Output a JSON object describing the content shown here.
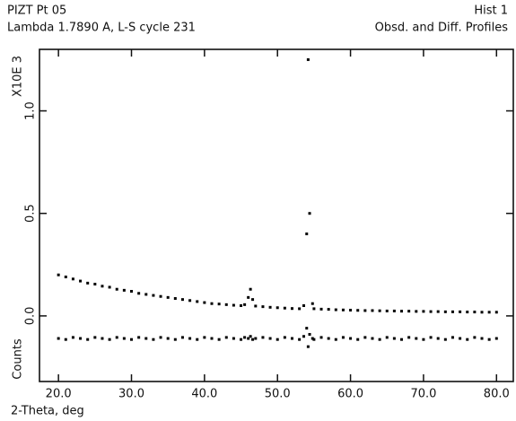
{
  "chart_data": {
    "type": "scatter",
    "title": "PIZT Pt 05",
    "subtitle": "Lambda 1.7890 A, L-S cycle  231",
    "annotations": [
      "Hist   1",
      "Obsd. and Diff. Profiles"
    ],
    "xlabel": "2-Theta, deg",
    "ylabel": "Counts",
    "y_multiplier": "X10E 3",
    "xlim": [
      17.4,
      82.3
    ],
    "ylim": [
      -0.32,
      1.3
    ],
    "xticks": [
      {
        "value": 20,
        "label": "20.0"
      },
      {
        "value": 30,
        "label": "30.0"
      },
      {
        "value": 40,
        "label": "40.0"
      },
      {
        "value": 50,
        "label": "50.0"
      },
      {
        "value": 60,
        "label": "60.0"
      },
      {
        "value": 70,
        "label": "70.0"
      },
      {
        "value": 80,
        "label": "80.0"
      }
    ],
    "yticks": [
      {
        "value": 0,
        "label": "0.0"
      },
      {
        "value": 0.5,
        "label": "0.5"
      },
      {
        "value": 1,
        "label": "1.0"
      }
    ],
    "x": [
      20,
      21,
      22,
      23,
      24,
      25,
      26,
      27,
      28,
      29,
      30,
      31,
      32,
      33,
      34,
      35,
      36,
      37,
      38,
      39,
      40,
      41,
      42,
      43,
      44,
      45,
      45.5,
      46,
      46.3,
      46.6,
      47,
      48,
      49,
      50,
      51,
      52,
      53,
      53.6,
      54,
      54.2,
      54.4,
      54.8,
      55,
      56,
      57,
      58,
      59,
      60,
      61,
      62,
      63,
      64,
      65,
      66,
      67,
      68,
      69,
      70,
      71,
      72,
      73,
      74,
      75,
      76,
      77,
      78,
      79,
      80
    ],
    "series": [
      {
        "color": "#000000",
        "values": [
          0.2,
          0.19,
          0.18,
          0.17,
          0.16,
          0.155,
          0.145,
          0.14,
          0.13,
          0.125,
          0.12,
          0.11,
          0.105,
          0.1,
          0.095,
          0.09,
          0.085,
          0.08,
          0.075,
          0.07,
          0.065,
          0.06,
          0.058,
          0.055,
          0.052,
          0.05,
          0.055,
          0.09,
          0.13,
          0.08,
          0.048,
          0.045,
          0.042,
          0.04,
          0.038,
          0.036,
          0.035,
          0.05,
          0.4,
          1.25,
          0.5,
          0.06,
          0.035,
          0.033,
          0.032,
          0.03,
          0.029,
          0.028,
          0.027,
          0.026,
          0.026,
          0.025,
          0.024,
          0.024,
          0.023,
          0.023,
          0.022,
          0.022,
          0.021,
          0.021,
          0.02,
          0.02,
          0.02,
          0.019,
          0.019,
          0.018,
          0.018,
          0.018
        ]
      },
      {
        "color": "#000000",
        "values": [
          -0.11,
          -0.115,
          -0.105,
          -0.11,
          -0.115,
          -0.105,
          -0.11,
          -0.115,
          -0.105,
          -0.11,
          -0.115,
          -0.105,
          -0.11,
          -0.115,
          -0.105,
          -0.11,
          -0.115,
          -0.105,
          -0.11,
          -0.115,
          -0.105,
          -0.11,
          -0.115,
          -0.105,
          -0.11,
          -0.115,
          -0.105,
          -0.11,
          -0.1,
          -0.115,
          -0.11,
          -0.105,
          -0.11,
          -0.115,
          -0.105,
          -0.11,
          -0.115,
          -0.1,
          -0.06,
          -0.15,
          -0.09,
          -0.11,
          -0.115,
          -0.105,
          -0.11,
          -0.115,
          -0.105,
          -0.11,
          -0.115,
          -0.105,
          -0.11,
          -0.115,
          -0.105,
          -0.11,
          -0.115,
          -0.105,
          -0.11,
          -0.115,
          -0.105,
          -0.11,
          -0.115,
          -0.105,
          -0.11,
          -0.115,
          -0.105,
          -0.11,
          -0.115,
          -0.11
        ]
      }
    ]
  }
}
